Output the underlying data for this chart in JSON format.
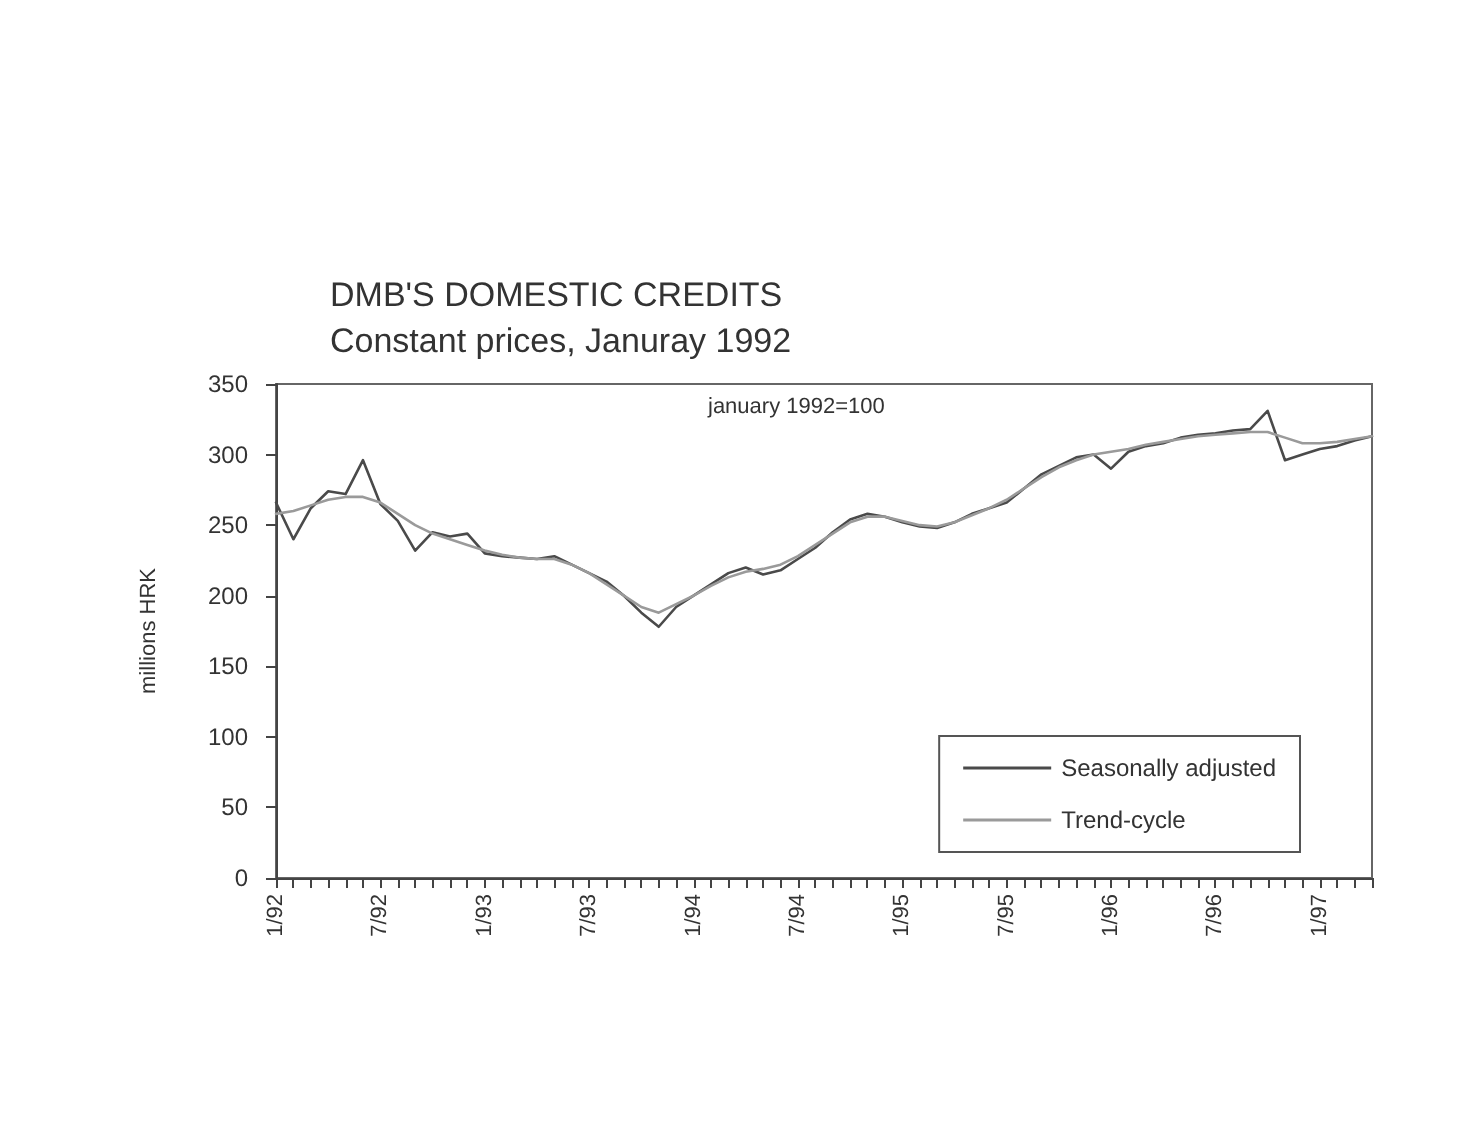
{
  "chart_data": {
    "type": "line",
    "title": "DMB'S DOMESTIC CREDITS",
    "subtitle": "Constant prices, Januray 1992",
    "ylabel": "millions HRK",
    "annotations": [
      "january 1992=100"
    ],
    "categories": [
      "1/92",
      null,
      null,
      null,
      null,
      null,
      "7/92",
      null,
      null,
      null,
      null,
      null,
      "1/93",
      null,
      null,
      null,
      null,
      null,
      "7/93",
      null,
      null,
      null,
      null,
      null,
      "1/94",
      null,
      null,
      null,
      null,
      null,
      "7/94",
      null,
      null,
      null,
      null,
      null,
      "1/95",
      null,
      null,
      null,
      null,
      null,
      "7/95",
      null,
      null,
      null,
      null,
      null,
      "1/96",
      null,
      null,
      null,
      null,
      null,
      "7/96",
      null,
      null,
      null,
      null,
      null,
      "1/97",
      null,
      null,
      null
    ],
    "series": [
      {
        "name": "Seasonally adjusted",
        "color": "#4a4a4a",
        "values": [
          266,
          240,
          262,
          274,
          272,
          296,
          265,
          253,
          232,
          245,
          242,
          244,
          230,
          228,
          227,
          226,
          228,
          222,
          216,
          210,
          200,
          188,
          178,
          192,
          200,
          208,
          216,
          220,
          215,
          218,
          226,
          234,
          245,
          254,
          258,
          256,
          252,
          249,
          248,
          252,
          258,
          262,
          266,
          276,
          286,
          292,
          298,
          300,
          290,
          302,
          306,
          308,
          312,
          314,
          315,
          317,
          318,
          331,
          296,
          300,
          304,
          306,
          310,
          313
        ]
      },
      {
        "name": "Trend-cycle",
        "color": "#9a9a9a",
        "values": [
          258,
          260,
          264,
          268,
          270,
          270,
          266,
          258,
          250,
          244,
          240,
          236,
          232,
          229,
          227,
          226,
          226,
          222,
          216,
          208,
          200,
          192,
          188,
          194,
          200,
          207,
          213,
          217,
          219,
          222,
          228,
          236,
          244,
          252,
          256,
          256,
          253,
          250,
          249,
          252,
          257,
          262,
          268,
          276,
          284,
          291,
          296,
          300,
          302,
          304,
          307,
          309,
          311,
          313,
          314,
          315,
          316,
          316,
          312,
          308,
          308,
          309,
          311,
          313
        ]
      }
    ],
    "ylim": [
      0,
      350
    ],
    "yticks": [
      0,
      50,
      100,
      150,
      200,
      250,
      300,
      350
    ],
    "grid": false,
    "legend": "bottom right",
    "marker": "none",
    "line_style": "solid"
  }
}
